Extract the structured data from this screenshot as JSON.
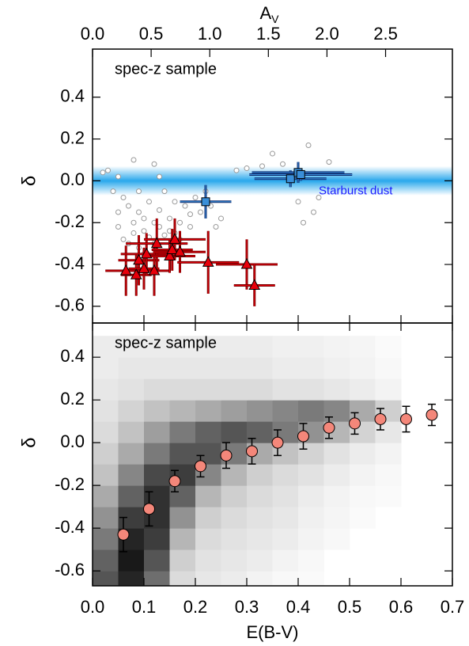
{
  "chart_data": [
    {
      "type": "scatter",
      "annotation": "spec-z sample",
      "band_label": "Starburst dust",
      "band": [
        -0.07,
        0.07
      ],
      "band_color": "#2aa8ec",
      "band_label_color": "#1a1aff",
      "ylabel": "δ",
      "x2label": "A",
      "x2label_sub": "V",
      "xlim": [
        0,
        0.7
      ],
      "xticks": [
        0,
        0.1,
        0.2,
        0.3,
        0.4,
        0.5,
        0.6,
        0.7
      ],
      "x2lim": [
        0,
        3.07
      ],
      "x2ticks": [
        {
          "value": 0,
          "label": "0.0"
        },
        0.5,
        {
          "value": 1,
          "label": "1.0"
        },
        1.5,
        {
          "value": 2,
          "label": "2.0"
        },
        2.5
      ],
      "ylim": [
        -0.68,
        0.63
      ],
      "yticks": [
        -0.6,
        -0.4,
        -0.2,
        {
          "value": 0,
          "label": "0.0"
        },
        0.2,
        0.4
      ],
      "series": [
        {
          "marker": "circle",
          "color": "#ffffff",
          "edgecolor": "#999999",
          "x": [
            0.02,
            0.03,
            0.04,
            0.05,
            0.05,
            0.06,
            0.06,
            0.07,
            0.07,
            0.08,
            0.08,
            0.08,
            0.09,
            0.09,
            0.1,
            0.1,
            0.1,
            0.11,
            0.11,
            0.12,
            0.12,
            0.12,
            0.13,
            0.13,
            0.14,
            0.14,
            0.15,
            0.15,
            0.16,
            0.17,
            0.17,
            0.18,
            0.19,
            0.2,
            0.21,
            0.22,
            0.23,
            0.25,
            0.28,
            0.3,
            0.33,
            0.35,
            0.37,
            0.4,
            0.42,
            0.44,
            0.43,
            0.46,
            0.41,
            0.05,
            0.09,
            0.13,
            0.16,
            0.19,
            0.24
          ],
          "values": [
            0.04,
            0.05,
            -0.05,
            0.02,
            -0.22,
            -0.08,
            -0.28,
            -0.12,
            -0.3,
            -0.2,
            -0.25,
            0.1,
            -0.15,
            -0.32,
            -0.18,
            -0.24,
            -0.35,
            -0.1,
            -0.27,
            -0.2,
            -0.3,
            0.08,
            -0.22,
            -0.14,
            -0.26,
            -0.05,
            -0.18,
            -0.24,
            -0.1,
            -0.2,
            -0.28,
            -0.12,
            -0.22,
            -0.08,
            -0.15,
            -0.05,
            -0.12,
            -0.18,
            0.05,
            0.06,
            0.07,
            0.13,
            0.08,
            -0.1,
            0.17,
            -0.08,
            -0.15,
            0.09,
            -0.2,
            -0.15,
            -0.05,
            0.02,
            -0.25,
            -0.16,
            -0.22
          ]
        },
        {
          "marker": "square",
          "color": "#3a8fd9",
          "edgecolor": "#000000",
          "errcolor": "#0d2a6e",
          "x": [
            0.22,
            0.385,
            0.4,
            0.405
          ],
          "values": [
            -0.1,
            0.01,
            0.04,
            0.03
          ],
          "xerr": [
            0.05,
            0.07,
            0.09,
            0.1
          ],
          "yerr": [
            0.08,
            0.04,
            0.05,
            0.03
          ]
        },
        {
          "marker": "triangle",
          "color": "#e8000b",
          "edgecolor": "#000000",
          "errcolor": "#7a0000",
          "x": [
            0.065,
            0.085,
            0.09,
            0.1,
            0.105,
            0.12,
            0.125,
            0.15,
            0.155,
            0.16,
            0.17,
            0.225,
            0.3,
            0.315
          ],
          "values": [
            -0.43,
            -0.45,
            -0.38,
            -0.42,
            -0.35,
            -0.43,
            -0.3,
            -0.36,
            -0.33,
            -0.28,
            -0.34,
            -0.39,
            -0.4,
            -0.5
          ],
          "xerr": [
            0.04,
            0.03,
            0.04,
            0.03,
            0.05,
            0.03,
            0.06,
            0.05,
            0.04,
            0.06,
            0.05,
            0.06,
            0.06,
            0.04
          ],
          "yerr": [
            0.12,
            0.1,
            0.12,
            0.1,
            0.1,
            0.12,
            0.12,
            0.08,
            0.1,
            0.1,
            0.1,
            0.15,
            0.12,
            0.1
          ]
        }
      ]
    },
    {
      "type": "heatmap",
      "annotation": "spec-z sample",
      "ylabel": "δ",
      "xlabel": "E(B-V)",
      "xlim": [
        0,
        0.7
      ],
      "xticks": [
        {
          "value": 0,
          "label": "0.0"
        },
        0.1,
        0.2,
        0.3,
        0.4,
        0.5,
        0.6,
        0.7
      ],
      "ylim": [
        -0.67,
        0.56
      ],
      "yticks": [
        -0.6,
        -0.4,
        -0.2,
        {
          "value": 0,
          "label": "0.0"
        },
        0.2,
        0.4
      ],
      "xbins": [
        0,
        0.05,
        0.1,
        0.15,
        0.2,
        0.25,
        0.3,
        0.35,
        0.4,
        0.45,
        0.5,
        0.55,
        0.6
      ],
      "ybins": [
        -0.7,
        -0.6,
        -0.5,
        -0.4,
        -0.3,
        -0.2,
        -0.1,
        0,
        0.1,
        0.2,
        0.3,
        0.4,
        0.5
      ],
      "z": [
        [
          70,
          90,
          60,
          15,
          10,
          8,
          5,
          3,
          2,
          0,
          0,
          0
        ],
        [
          65,
          95,
          70,
          20,
          12,
          10,
          8,
          5,
          3,
          0,
          0,
          0
        ],
        [
          55,
          90,
          80,
          30,
          15,
          12,
          10,
          8,
          5,
          3,
          0,
          0
        ],
        [
          45,
          80,
          85,
          45,
          20,
          15,
          12,
          10,
          6,
          4,
          2,
          0
        ],
        [
          35,
          65,
          85,
          65,
          30,
          20,
          15,
          12,
          8,
          5,
          3,
          2
        ],
        [
          25,
          50,
          75,
          80,
          50,
          30,
          20,
          15,
          12,
          8,
          5,
          3
        ],
        [
          20,
          35,
          55,
          70,
          70,
          55,
          35,
          25,
          18,
          12,
          8,
          5
        ],
        [
          15,
          25,
          40,
          55,
          65,
          70,
          65,
          55,
          45,
          30,
          18,
          10
        ],
        [
          12,
          18,
          25,
          30,
          35,
          40,
          45,
          50,
          55,
          50,
          35,
          20
        ],
        [
          10,
          12,
          15,
          15,
          15,
          15,
          15,
          12,
          12,
          10,
          8,
          5
        ],
        [
          8,
          10,
          10,
          10,
          10,
          10,
          10,
          8,
          8,
          6,
          5,
          3
        ],
        [
          8,
          8,
          8,
          8,
          8,
          8,
          8,
          6,
          6,
          5,
          4,
          2
        ]
      ],
      "zmax": 100,
      "series": [
        {
          "marker": "circle",
          "color": "#f4877a",
          "edgecolor": "#000000",
          "errcolor": "#000000",
          "x": [
            0.06,
            0.11,
            0.16,
            0.21,
            0.26,
            0.31,
            0.36,
            0.41,
            0.46,
            0.51,
            0.56,
            0.61,
            0.66
          ],
          "values": [
            -0.43,
            -0.31,
            -0.18,
            -0.11,
            -0.06,
            -0.04,
            0.0,
            0.03,
            0.07,
            0.09,
            0.11,
            0.11,
            0.13
          ],
          "yerr": [
            0.08,
            0.08,
            0.05,
            0.05,
            0.06,
            0.06,
            0.06,
            0.06,
            0.05,
            0.05,
            0.05,
            0.06,
            0.05
          ]
        }
      ]
    }
  ]
}
